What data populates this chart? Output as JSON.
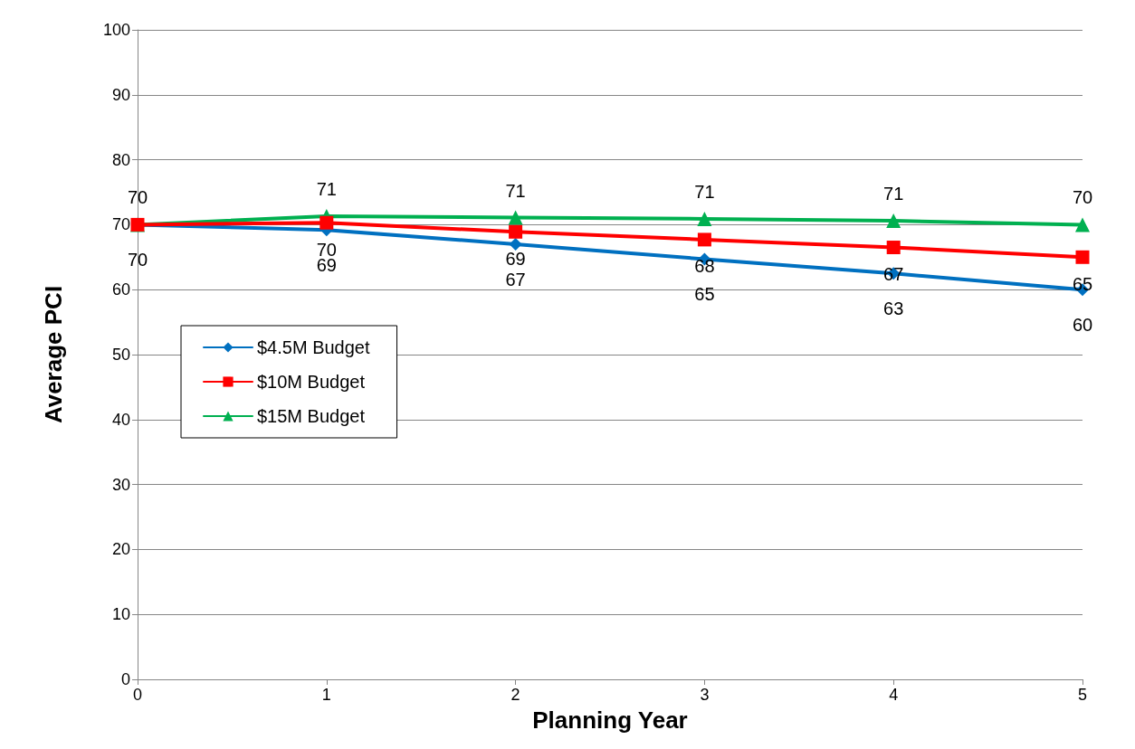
{
  "chart_data": {
    "type": "line",
    "xlabel": "Planning Year",
    "ylabel": "Average PCI",
    "x": [
      0,
      1,
      2,
      3,
      4,
      5
    ],
    "series": [
      {
        "name": "$4.5M Budget",
        "color": "#0070c0",
        "marker": "diamond",
        "values": [
          70,
          69.2,
          67,
          64.7,
          62.5,
          60
        ],
        "value_labels": [
          "70",
          "69",
          "67",
          "65",
          "63",
          "60"
        ]
      },
      {
        "name": "$10M Budget",
        "color": "#ff0000",
        "marker": "square",
        "values": [
          70,
          70.3,
          68.9,
          67.7,
          66.5,
          65
        ],
        "value_labels": [
          null,
          "70",
          "69",
          "68",
          "67",
          "65"
        ]
      },
      {
        "name": "$15M Budget",
        "color": "#00b050",
        "marker": "triangle",
        "values": [
          70,
          71.3,
          71.1,
          70.9,
          70.6,
          70
        ],
        "value_labels": [
          "70",
          "71",
          "71",
          "71",
          "71",
          "70"
        ]
      }
    ],
    "xlim": [
      0,
      5
    ],
    "xticks": [
      0,
      1,
      2,
      3,
      4,
      5
    ],
    "ylim": [
      0,
      100
    ],
    "yticks": [
      0,
      10,
      20,
      30,
      40,
      50,
      60,
      70,
      80,
      90,
      100
    ],
    "grid": "y",
    "legend": "left",
    "line_style": "solid"
  }
}
